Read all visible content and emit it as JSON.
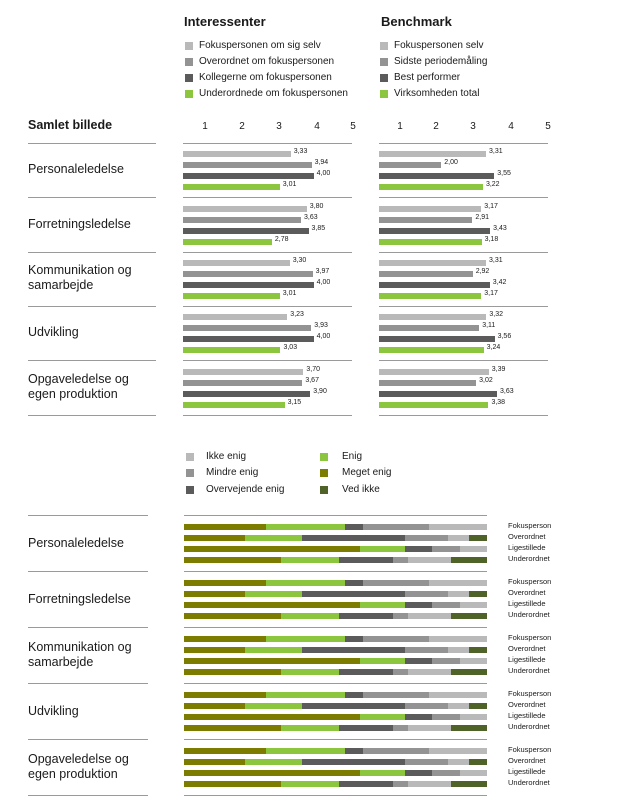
{
  "colors": {
    "light": "#b9b9b9",
    "mid": "#939393",
    "dark": "#5b5b5b",
    "green": "#8cc63f",
    "olive": "#7c7c00",
    "darkgreen": "#4f6228"
  },
  "panels": {
    "left": {
      "title": "Interessenter",
      "legend": [
        "Fokuspersonen om sig selv",
        "Overordnet om fokuspersonen",
        "Kollegerne om fokuspersonen",
        "Underordnede om fokuspersonen"
      ]
    },
    "right": {
      "title": "Benchmark",
      "legend": [
        "Fokuspersonen selv",
        "Sidste periodemåling",
        "Best performer",
        "Virksomheden total"
      ]
    }
  },
  "section_title": "Samlet billede",
  "ticks": [
    "1",
    "2",
    "3",
    "4",
    "5"
  ],
  "categories": [
    {
      "label_lines": [
        "Personaleledelse"
      ]
    },
    {
      "label_lines": [
        "Forretningsledelse"
      ]
    },
    {
      "label_lines": [
        "Kommunikation og",
        "samarbejde"
      ]
    },
    {
      "label_lines": [
        "Udvikling"
      ]
    },
    {
      "label_lines": [
        "Opgaveledelse og",
        "egen produktion"
      ]
    }
  ],
  "chart_data": [
    {
      "type": "bar",
      "orientation": "horizontal",
      "title": "Interessenter",
      "xlim": [
        1,
        5
      ],
      "categories": [
        "Personaleledelse",
        "Forretningsledelse",
        "Kommunikation og samarbejde",
        "Udvikling",
        "Opgaveledelse og egen produktion"
      ],
      "series": [
        {
          "name": "Fokuspersonen om sig selv",
          "values": [
            3.33,
            3.8,
            3.3,
            3.23,
            3.7
          ],
          "labels": [
            "3,33",
            "3,80",
            "3,30",
            "3,23",
            "3,70"
          ]
        },
        {
          "name": "Overordnet om fokuspersonen",
          "values": [
            3.94,
            3.63,
            3.97,
            3.93,
            3.67
          ],
          "labels": [
            "3,94",
            "3,63",
            "3,97",
            "3,93",
            "3,67"
          ]
        },
        {
          "name": "Kollegerne om fokuspersonen",
          "values": [
            4.0,
            3.85,
            4.0,
            4.0,
            3.9
          ],
          "labels": [
            "4,00",
            "3,85",
            "4,00",
            "4,00",
            "3,90"
          ]
        },
        {
          "name": "Underordnede om fokuspersonen",
          "values": [
            3.01,
            2.78,
            3.01,
            3.03,
            3.15
          ],
          "labels": [
            "3,01",
            "2,78",
            "3,01",
            "3,03",
            "3,15"
          ]
        }
      ]
    },
    {
      "type": "bar",
      "orientation": "horizontal",
      "title": "Benchmark",
      "xlim": [
        1,
        5
      ],
      "categories": [
        "Personaleledelse",
        "Forretningsledelse",
        "Kommunikation og samarbejde",
        "Udvikling",
        "Opgaveledelse og egen produktion"
      ],
      "series": [
        {
          "name": "Fokuspersonen selv",
          "values": [
            3.31,
            3.17,
            3.31,
            3.32,
            3.39
          ],
          "labels": [
            "3,31",
            "3,17",
            "3,31",
            "3,32",
            "3,39"
          ]
        },
        {
          "name": "Sidste periodemåling",
          "values": [
            2.0,
            2.91,
            2.92,
            3.11,
            3.02
          ],
          "labels": [
            "2,00",
            "2,91",
            "2,92",
            "3,11",
            "3,02"
          ]
        },
        {
          "name": "Best performer",
          "values": [
            3.55,
            3.43,
            3.42,
            3.56,
            3.63
          ],
          "labels": [
            "3,55",
            "3,43",
            "3,42",
            "3,56",
            "3,63"
          ]
        },
        {
          "name": "Virksomheden total",
          "values": [
            3.22,
            3.18,
            3.17,
            3.24,
            3.38
          ],
          "labels": [
            "3,22",
            "3,18",
            "3,17",
            "3,24",
            "3,38"
          ]
        }
      ]
    },
    {
      "type": "bar",
      "orientation": "horizontal",
      "stacked": "percent",
      "categories": [
        "Personaleledelse",
        "Forretningsledelse",
        "Kommunikation og samarbejde",
        "Udvikling",
        "Opgaveledelse og egen produktion"
      ],
      "rows": [
        "Fokusperson",
        "Overordnet",
        "Ligestillede",
        "Underordnet"
      ],
      "legend": [
        "Ikke enig",
        "Mindre enig",
        "Overvejende enig",
        "Enig",
        "Meget enig",
        "Ved ikke"
      ],
      "segment_order": [
        "Meget enig",
        "Enig",
        "Overvejende enig",
        "Mindre enig",
        "Ikke enig",
        "Ved ikke"
      ],
      "percent_by_row": {
        "Fokusperson": [
          27,
          26,
          6,
          22,
          19,
          0
        ],
        "Overordnet": [
          20,
          19,
          34,
          14,
          7,
          6
        ],
        "Ligestillede": [
          58,
          15,
          9,
          9,
          9,
          0
        ],
        "Underordnet": [
          32,
          19,
          18,
          5,
          14,
          12
        ]
      }
    }
  ]
}
